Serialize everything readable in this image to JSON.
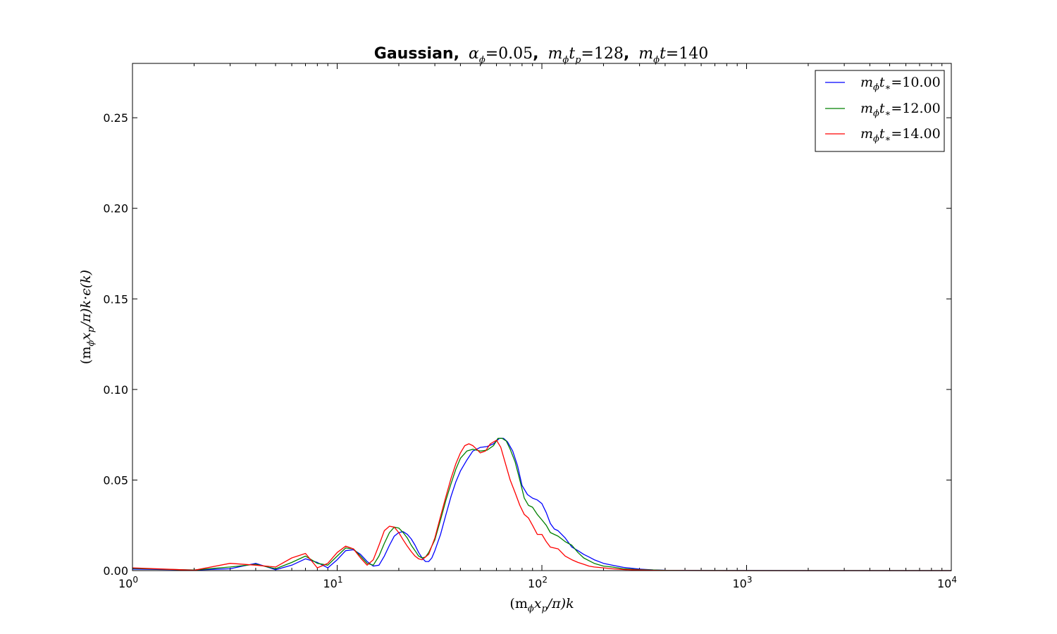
{
  "chart_data": {
    "type": "line",
    "title": {
      "bold_part": "Gaussian,",
      "items": [
        {
          "sym": "α",
          "sub": "ϕ",
          "eq": "=0.05",
          "sep": ","
        },
        {
          "sym": "m",
          "sub": "ϕ",
          "sym2": "t",
          "sub2": "p",
          "eq": "=128",
          "sep": ","
        },
        {
          "sym": "m",
          "sub": "ϕ",
          "sym2": "t",
          "eq": "=140",
          "sep": ""
        }
      ]
    },
    "xlabel": {
      "pre": "(m",
      "sub1": "ϕ",
      "mid": "x",
      "sub2": "p",
      "post": "/π)k"
    },
    "ylabel": {
      "pre": "(m",
      "sub1": "ϕ",
      "mid": "x",
      "sub2": "p",
      "post": "/π)k·ϵ(k)"
    },
    "x_scale": "log",
    "xlim": [
      1,
      10000
    ],
    "ylim": [
      0,
      0.28
    ],
    "x_ticks": [
      {
        "value": 1,
        "base": "10",
        "exp": "0"
      },
      {
        "value": 10,
        "base": "10",
        "exp": "1"
      },
      {
        "value": 100,
        "base": "10",
        "exp": "2"
      },
      {
        "value": 1000,
        "base": "10",
        "exp": "3"
      },
      {
        "value": 10000,
        "base": "10",
        "exp": "4"
      }
    ],
    "y_ticks": [
      {
        "value": 0.0,
        "label": "0.00"
      },
      {
        "value": 0.05,
        "label": "0.05"
      },
      {
        "value": 0.1,
        "label": "0.10"
      },
      {
        "value": 0.15,
        "label": "0.15"
      },
      {
        "value": 0.2,
        "label": "0.20"
      },
      {
        "value": 0.25,
        "label": "0.25"
      }
    ],
    "grid": false,
    "legend_position": "top-right",
    "series": [
      {
        "name": "m_ϕ t_* =10.00",
        "legend": {
          "sym": "m",
          "sub": "ϕ",
          "sym2": "t",
          "sub2": "∗",
          "eq": "=10.00"
        },
        "color": "#0000ff",
        "x": [
          1,
          2,
          3,
          4,
          5,
          6,
          7,
          8,
          9,
          10,
          11,
          12,
          13,
          14,
          15,
          16,
          17,
          18,
          19,
          20,
          21,
          22,
          23,
          24,
          25,
          26,
          27,
          28,
          29,
          30,
          32,
          34,
          36,
          38,
          40,
          43,
          46,
          50,
          54,
          58,
          62,
          65,
          68,
          72,
          76,
          80,
          85,
          90,
          95,
          100,
          105,
          110,
          115,
          120,
          130,
          140,
          150,
          160,
          170,
          180,
          200,
          220,
          250,
          300,
          350,
          400,
          500,
          700,
          1000,
          2000,
          5000,
          10000
        ],
        "y": [
          0.0008,
          0.0003,
          0.001,
          0.004,
          0.0005,
          0.003,
          0.0065,
          0.0045,
          0.0015,
          0.006,
          0.011,
          0.0115,
          0.009,
          0.005,
          0.0025,
          0.003,
          0.008,
          0.014,
          0.019,
          0.021,
          0.0215,
          0.02,
          0.0175,
          0.014,
          0.01,
          0.007,
          0.005,
          0.005,
          0.007,
          0.011,
          0.02,
          0.031,
          0.041,
          0.049,
          0.055,
          0.061,
          0.066,
          0.068,
          0.0685,
          0.07,
          0.073,
          0.073,
          0.071,
          0.066,
          0.058,
          0.047,
          0.042,
          0.04,
          0.039,
          0.037,
          0.032,
          0.026,
          0.023,
          0.022,
          0.018,
          0.013,
          0.011,
          0.009,
          0.0075,
          0.006,
          0.004,
          0.003,
          0.0018,
          0.0008,
          0.0004,
          0.0002,
          0.0001,
          5e-05,
          2e-05,
          1e-05,
          0.0,
          0.0
        ]
      },
      {
        "name": "m_ϕ t_* =12.00",
        "legend": {
          "sym": "m",
          "sub": "ϕ",
          "sym2": "t",
          "sub2": "∗",
          "eq": "=12.00"
        },
        "color": "#008000",
        "x": [
          1,
          2,
          3,
          4,
          5,
          6,
          7,
          8,
          9,
          10,
          11,
          12,
          13,
          14,
          15,
          16,
          17,
          18,
          19,
          20,
          21,
          22,
          23,
          24,
          25,
          26,
          27,
          28,
          30,
          32,
          34,
          36,
          38,
          40,
          43,
          46,
          50,
          54,
          58,
          61,
          64,
          67,
          70,
          74,
          78,
          82,
          86,
          90,
          95,
          100,
          105,
          110,
          120,
          130,
          140,
          150,
          160,
          170,
          180,
          200,
          220,
          250,
          300,
          350,
          400,
          500,
          700,
          1000,
          2000,
          5000,
          10000
        ],
        "y": [
          0.0012,
          0.0003,
          0.002,
          0.0035,
          0.001,
          0.0045,
          0.008,
          0.004,
          0.003,
          0.008,
          0.0125,
          0.012,
          0.008,
          0.004,
          0.003,
          0.008,
          0.015,
          0.021,
          0.024,
          0.0235,
          0.021,
          0.018,
          0.014,
          0.011,
          0.008,
          0.007,
          0.0075,
          0.01,
          0.017,
          0.028,
          0.039,
          0.048,
          0.056,
          0.062,
          0.066,
          0.067,
          0.066,
          0.0665,
          0.069,
          0.073,
          0.073,
          0.0715,
          0.067,
          0.06,
          0.05,
          0.04,
          0.036,
          0.035,
          0.031,
          0.028,
          0.025,
          0.021,
          0.019,
          0.016,
          0.014,
          0.01,
          0.007,
          0.0055,
          0.004,
          0.0025,
          0.002,
          0.001,
          0.0005,
          0.0003,
          0.0001,
          5e-05,
          2e-05,
          1e-05,
          0.0,
          0.0,
          0.0
        ]
      },
      {
        "name": "m_ϕ t_* =14.00",
        "legend": {
          "sym": "m",
          "sub": "ϕ",
          "sym2": "t",
          "sub2": "∗",
          "eq": "=14.00"
        },
        "color": "#ff0000",
        "x": [
          1,
          2,
          3,
          4,
          5,
          6,
          7,
          8,
          9,
          10,
          11,
          12,
          13,
          14,
          15,
          16,
          17,
          18,
          19,
          20,
          21,
          22,
          23,
          24,
          25,
          26,
          28,
          30,
          32,
          34,
          36,
          38,
          40,
          42,
          44,
          46,
          48,
          50,
          53,
          56,
          60,
          63,
          66,
          70,
          74,
          78,
          82,
          86,
          90,
          95,
          100,
          105,
          110,
          120,
          130,
          140,
          150,
          160,
          170,
          180,
          200,
          220,
          250,
          300,
          350,
          400,
          500,
          700,
          1000,
          2000,
          5000,
          10000
        ],
        "y": [
          0.0015,
          0.0002,
          0.004,
          0.003,
          0.002,
          0.007,
          0.0095,
          0.0015,
          0.004,
          0.01,
          0.0135,
          0.012,
          0.007,
          0.003,
          0.006,
          0.014,
          0.022,
          0.0245,
          0.024,
          0.021,
          0.017,
          0.0135,
          0.0105,
          0.008,
          0.0065,
          0.006,
          0.009,
          0.018,
          0.03,
          0.041,
          0.051,
          0.059,
          0.065,
          0.069,
          0.07,
          0.069,
          0.067,
          0.065,
          0.066,
          0.07,
          0.072,
          0.068,
          0.06,
          0.05,
          0.043,
          0.036,
          0.031,
          0.029,
          0.025,
          0.02,
          0.02,
          0.016,
          0.013,
          0.012,
          0.008,
          0.006,
          0.0045,
          0.0035,
          0.0025,
          0.002,
          0.0015,
          0.001,
          0.0006,
          0.0003,
          0.0001,
          5e-05,
          2e-05,
          1e-05,
          0.0,
          0.0,
          0.0,
          0.0
        ]
      }
    ]
  }
}
